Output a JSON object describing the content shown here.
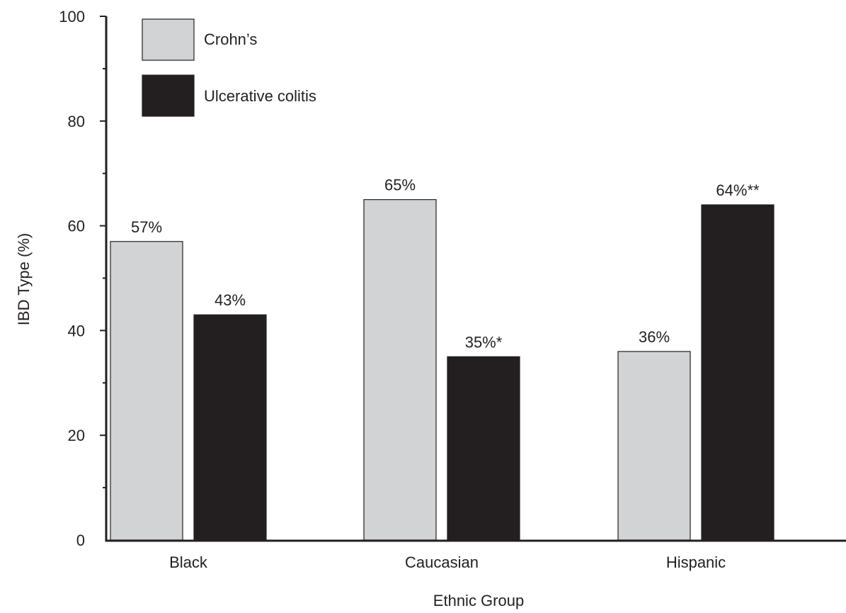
{
  "chart_data": {
    "type": "bar",
    "title": "",
    "xlabel": "Ethnic Group",
    "ylabel": "IBD Type (%)",
    "ylim": [
      0,
      100
    ],
    "yticks": [
      0,
      20,
      40,
      60,
      80,
      100
    ],
    "grid": false,
    "legend_position": "top-left",
    "categories": [
      "Black",
      "Caucasian",
      "Hispanic"
    ],
    "series": [
      {
        "name": "Crohn’s",
        "color": "#d1d3d4",
        "values": [
          57,
          65,
          36
        ],
        "labels": [
          "57%",
          "65%",
          "36%"
        ]
      },
      {
        "name": "Ulcerative colitis",
        "color": "#231f20",
        "values": [
          43,
          35,
          64
        ],
        "labels": [
          "43%",
          "35%*",
          "64%**"
        ]
      }
    ]
  }
}
